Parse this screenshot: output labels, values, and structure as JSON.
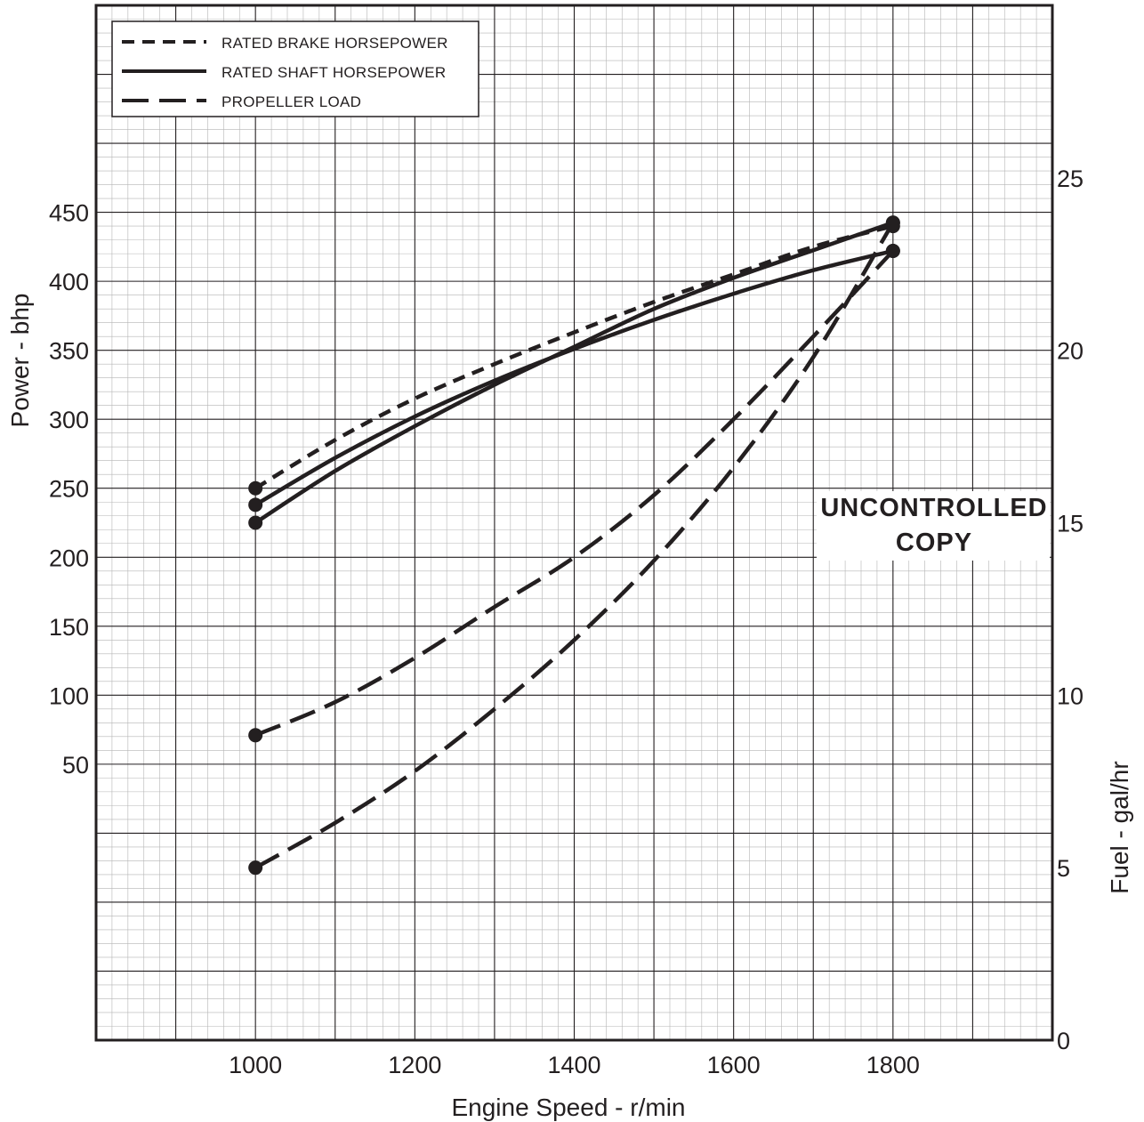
{
  "chart_data": {
    "type": "line",
    "xlabel": "Engine Speed - r/min",
    "ylabel_left": "Power - bhp",
    "ylabel_right": "Fuel - gal/hr",
    "xlim": [
      800,
      2000
    ],
    "ylim_left": [
      -150,
      600
    ],
    "ylim_right": [
      0,
      30
    ],
    "x_ticks": [
      1000,
      1200,
      1400,
      1600,
      1800
    ],
    "y_left_ticks": [
      50,
      100,
      150,
      200,
      250,
      300,
      350,
      400,
      450
    ],
    "y_right_ticks": [
      0,
      5,
      10,
      15,
      20,
      25
    ],
    "grid": true,
    "legend_position": "top-left",
    "legend": [
      {
        "label": "RATED BRAKE HORSEPOWER",
        "style": "short-dash"
      },
      {
        "label": "RATED SHAFT HORSEPOWER",
        "style": "solid"
      },
      {
        "label": "PROPELLER LOAD",
        "style": "long-dash"
      }
    ],
    "series": [
      {
        "name": "RATED BRAKE HORSEPOWER",
        "axis": "left",
        "style": "short-dash",
        "x": [
          1000,
          1100,
          1200,
          1300,
          1400,
          1500,
          1600,
          1700,
          1800
        ],
        "y": [
          250,
          285,
          315,
          340,
          363,
          385,
          405,
          425,
          440
        ]
      },
      {
        "name": "RATED SHAFT HORSEPOWER",
        "axis": "left",
        "style": "solid",
        "x": [
          1000,
          1100,
          1200,
          1300,
          1400,
          1500,
          1600,
          1700,
          1800
        ],
        "y": [
          238,
          272,
          302,
          328,
          351,
          372,
          391,
          408,
          422
        ]
      },
      {
        "name": "PROPELLER LOAD",
        "axis": "left",
        "style": "long-dash",
        "x": [
          1000,
          1100,
          1200,
          1300,
          1400,
          1500,
          1600,
          1700,
          1800
        ],
        "y": [
          71,
          95,
          127,
          164,
          200,
          245,
          300,
          360,
          422
        ]
      },
      {
        "name": "RATED SHAFT HORSEPOWER",
        "axis": "right",
        "style": "solid",
        "x": [
          1000,
          1100,
          1200,
          1300,
          1400,
          1500,
          1600,
          1700,
          1800
        ],
        "y": [
          15.0,
          16.5,
          17.8,
          19.0,
          20.1,
          21.2,
          22.1,
          22.9,
          23.7
        ]
      },
      {
        "name": "PROPELLER LOAD",
        "axis": "right",
        "style": "long-dash",
        "x": [
          1000,
          1100,
          1200,
          1300,
          1400,
          1500,
          1600,
          1700,
          1800
        ],
        "y": [
          5.0,
          6.3,
          7.8,
          9.6,
          11.6,
          13.9,
          16.6,
          19.8,
          23.7
        ]
      }
    ],
    "annotations": [
      "UNCONTROLLED",
      "COPY"
    ]
  }
}
